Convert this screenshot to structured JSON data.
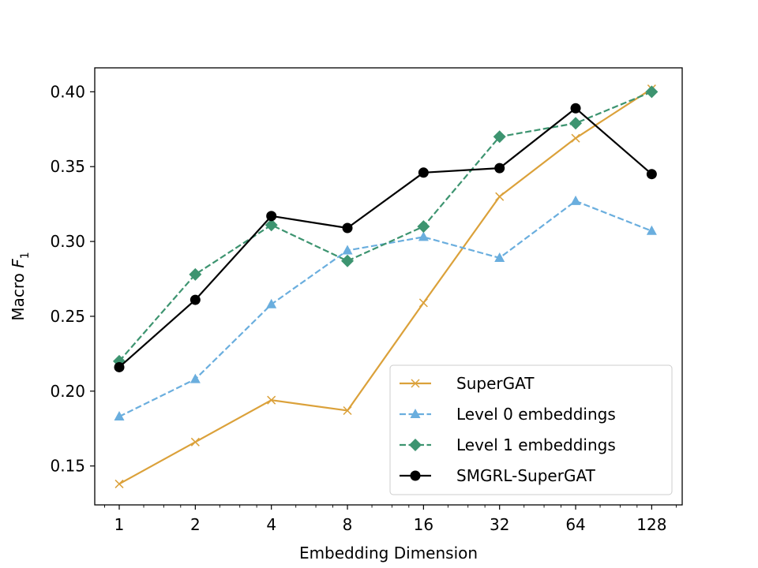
{
  "chart_data": {
    "type": "line",
    "title": "",
    "xlabel": "Embedding Dimension",
    "ylabel_prefix": "Macro ",
    "ylabel_var": "F",
    "ylabel_sub": "1",
    "x_scale": "log2",
    "x": [
      1,
      2,
      4,
      8,
      16,
      32,
      64,
      128
    ],
    "x_tick_labels": [
      "1",
      "2",
      "4",
      "8",
      "16",
      "32",
      "64",
      "128"
    ],
    "xlim": [
      0.8,
      169
    ],
    "ylim": [
      0.124,
      0.416
    ],
    "y_ticks": [
      0.15,
      0.2,
      0.25,
      0.3,
      0.35,
      0.4
    ],
    "y_tick_labels": [
      "0.15",
      "0.20",
      "0.25",
      "0.30",
      "0.35",
      "0.40"
    ],
    "grid": false,
    "legend_position": "lower-right",
    "series": [
      {
        "name": "SuperGAT",
        "color": "#dba13a",
        "dash": "solid",
        "marker": "x",
        "values": [
          0.138,
          0.166,
          0.194,
          0.187,
          0.259,
          0.33,
          0.369,
          0.402
        ]
      },
      {
        "name": "Level 0 embeddings",
        "color": "#6aaede",
        "dash": "dashed",
        "marker": "triangle",
        "values": [
          0.183,
          0.208,
          0.258,
          0.294,
          0.303,
          0.289,
          0.327,
          0.307
        ]
      },
      {
        "name": "Level 1 embeddings",
        "color": "#3d9470",
        "dash": "dashed",
        "marker": "diamond",
        "values": [
          0.22,
          0.278,
          0.311,
          0.287,
          0.31,
          0.37,
          0.379,
          0.4
        ]
      },
      {
        "name": "SMGRL-SuperGAT",
        "color": "#000000",
        "dash": "solid",
        "marker": "circle",
        "values": [
          0.216,
          0.261,
          0.317,
          0.309,
          0.346,
          0.349,
          0.389,
          0.345
        ]
      }
    ]
  }
}
